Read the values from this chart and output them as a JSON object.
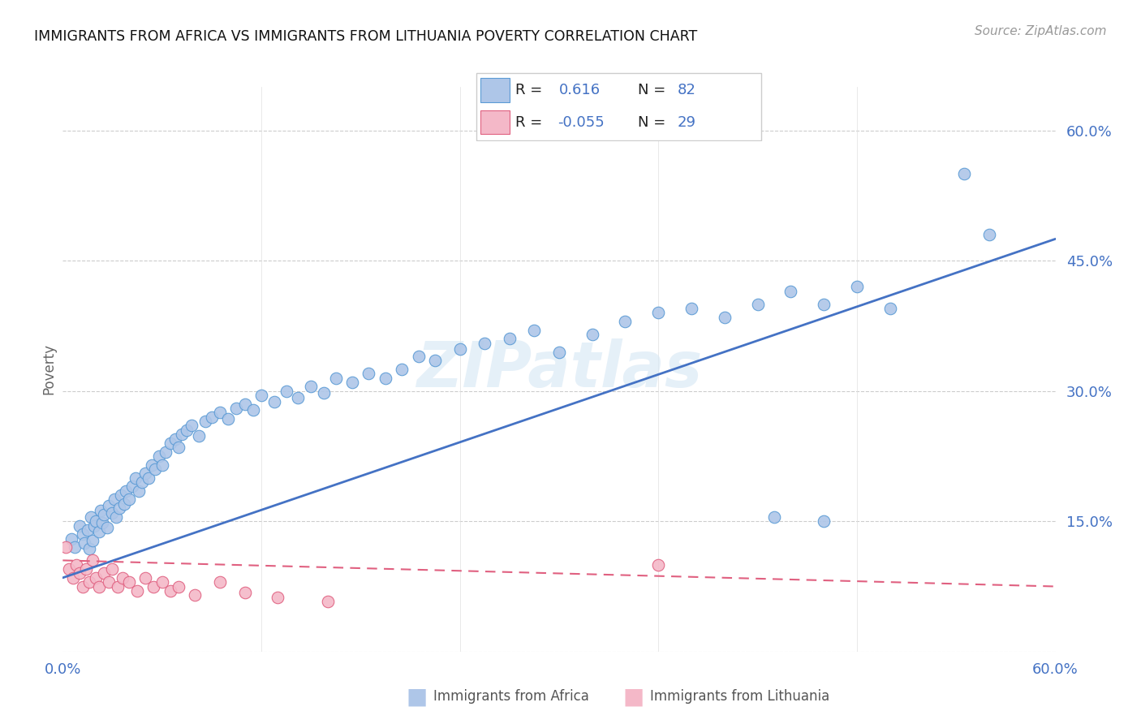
{
  "title": "IMMIGRANTS FROM AFRICA VS IMMIGRANTS FROM LITHUANIA POVERTY CORRELATION CHART",
  "source": "Source: ZipAtlas.com",
  "ylabel": "Poverty",
  "xlim": [
    0.0,
    0.6
  ],
  "ylim": [
    0.0,
    0.65
  ],
  "yticks": [
    0.0,
    0.15,
    0.3,
    0.45,
    0.6
  ],
  "ytick_labels": [
    "",
    "15.0%",
    "30.0%",
    "45.0%",
    "60.0%"
  ],
  "xticks": [
    0.0,
    0.12,
    0.24,
    0.36,
    0.48,
    0.6
  ],
  "africa_color": "#aec6e8",
  "africa_edge_color": "#5b9bd5",
  "lithuania_color": "#f4b8c8",
  "lithuania_edge_color": "#e06080",
  "africa_R": 0.616,
  "africa_N": 82,
  "lithuania_R": -0.055,
  "lithuania_N": 29,
  "watermark": "ZIPatlas",
  "africa_line_color": "#4472c4",
  "africa_line_x0": 0.0,
  "africa_line_y0": 0.085,
  "africa_line_x1": 0.6,
  "africa_line_y1": 0.475,
  "lithuania_line_color": "#e06080",
  "lithuania_line_x0": 0.0,
  "lithuania_line_y0": 0.105,
  "lithuania_line_x1": 0.6,
  "lithuania_line_y1": 0.075,
  "africa_x": [
    0.005,
    0.007,
    0.01,
    0.012,
    0.013,
    0.015,
    0.016,
    0.017,
    0.018,
    0.019,
    0.02,
    0.022,
    0.023,
    0.024,
    0.025,
    0.027,
    0.028,
    0.03,
    0.031,
    0.032,
    0.034,
    0.035,
    0.037,
    0.038,
    0.04,
    0.042,
    0.044,
    0.046,
    0.048,
    0.05,
    0.052,
    0.054,
    0.056,
    0.058,
    0.06,
    0.062,
    0.065,
    0.068,
    0.07,
    0.072,
    0.075,
    0.078,
    0.082,
    0.086,
    0.09,
    0.095,
    0.1,
    0.105,
    0.11,
    0.115,
    0.12,
    0.128,
    0.135,
    0.142,
    0.15,
    0.158,
    0.165,
    0.175,
    0.185,
    0.195,
    0.205,
    0.215,
    0.225,
    0.24,
    0.255,
    0.27,
    0.285,
    0.3,
    0.32,
    0.34,
    0.36,
    0.38,
    0.4,
    0.42,
    0.44,
    0.46,
    0.48,
    0.5,
    0.43,
    0.46,
    0.545,
    0.56
  ],
  "africa_y": [
    0.13,
    0.12,
    0.145,
    0.135,
    0.125,
    0.14,
    0.118,
    0.155,
    0.128,
    0.145,
    0.15,
    0.138,
    0.162,
    0.148,
    0.158,
    0.143,
    0.168,
    0.16,
    0.175,
    0.155,
    0.165,
    0.18,
    0.17,
    0.185,
    0.175,
    0.19,
    0.2,
    0.185,
    0.195,
    0.205,
    0.2,
    0.215,
    0.21,
    0.225,
    0.215,
    0.23,
    0.24,
    0.245,
    0.235,
    0.25,
    0.255,
    0.26,
    0.248,
    0.265,
    0.27,
    0.275,
    0.268,
    0.28,
    0.285,
    0.278,
    0.295,
    0.288,
    0.3,
    0.292,
    0.305,
    0.298,
    0.315,
    0.31,
    0.32,
    0.315,
    0.325,
    0.34,
    0.335,
    0.348,
    0.355,
    0.36,
    0.37,
    0.345,
    0.365,
    0.38,
    0.39,
    0.395,
    0.385,
    0.4,
    0.415,
    0.4,
    0.42,
    0.395,
    0.155,
    0.15,
    0.55,
    0.48
  ],
  "lithuania_x": [
    0.002,
    0.004,
    0.006,
    0.008,
    0.01,
    0.012,
    0.014,
    0.016,
    0.018,
    0.02,
    0.022,
    0.025,
    0.028,
    0.03,
    0.033,
    0.036,
    0.04,
    0.045,
    0.05,
    0.055,
    0.06,
    0.065,
    0.07,
    0.08,
    0.095,
    0.11,
    0.13,
    0.16,
    0.36
  ],
  "lithuania_y": [
    0.12,
    0.095,
    0.085,
    0.1,
    0.09,
    0.075,
    0.095,
    0.08,
    0.105,
    0.085,
    0.075,
    0.09,
    0.08,
    0.095,
    0.075,
    0.085,
    0.08,
    0.07,
    0.085,
    0.075,
    0.08,
    0.07,
    0.075,
    0.065,
    0.08,
    0.068,
    0.062,
    0.058,
    0.1
  ]
}
